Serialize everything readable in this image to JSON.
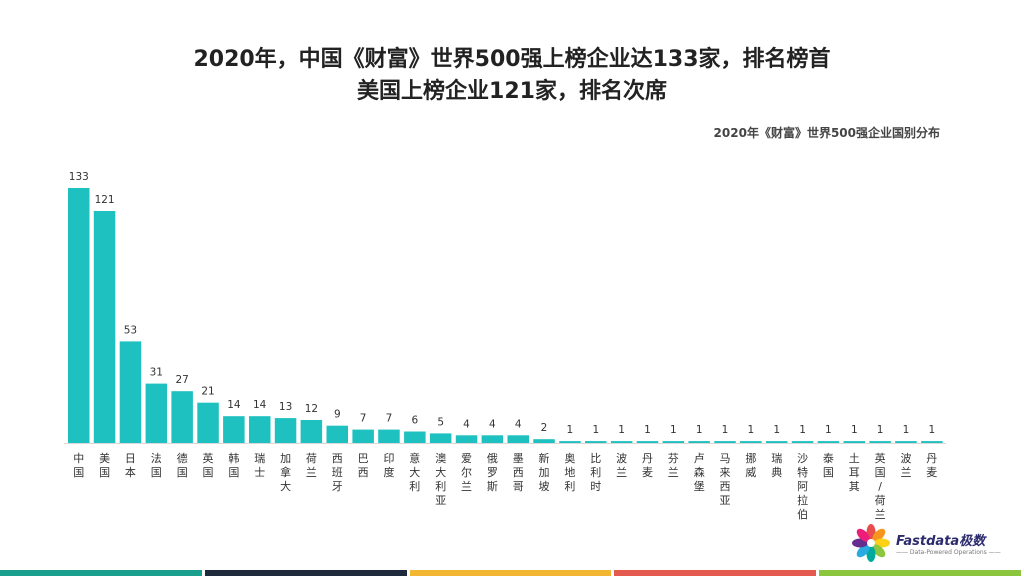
{
  "header": {
    "title_line1": "2020年，中国《财富》世界500强上榜企业达133家，排名榜首",
    "title_line2": "美国上榜企业121家，排名次席"
  },
  "chart_data": {
    "type": "bar",
    "subtitle": "2020年《财富》世界500强企业国别分布",
    "categories": [
      "中国",
      "美国",
      "日本",
      "法国",
      "德国",
      "英国",
      "韩国",
      "瑞士",
      "加拿大",
      "荷兰",
      "西班牙",
      "巴西",
      "印度",
      "意大利",
      "澳大利亚",
      "爱尔兰",
      "俄罗斯",
      "墨西哥",
      "新加坡",
      "奥地利",
      "比利时",
      "波兰",
      "丹麦",
      "芬兰",
      "卢森堡",
      "马来西亚",
      "挪威",
      "瑞典",
      "沙特阿拉伯",
      "泰国",
      "土耳其",
      "英国/荷兰",
      "波兰",
      "丹麦"
    ],
    "values": [
      133,
      121,
      53,
      31,
      27,
      21,
      14,
      14,
      13,
      12,
      9,
      7,
      7,
      6,
      5,
      4,
      4,
      4,
      2,
      1,
      1,
      1,
      1,
      1,
      1,
      1,
      1,
      1,
      1,
      1,
      1,
      1,
      1,
      1
    ],
    "bar_color": "#1fc0c0",
    "ylim": [
      0,
      133
    ],
    "grid": false,
    "legend": "none"
  },
  "logo": {
    "name": "Fastdata极数",
    "tagline": "—— Data-Powered Operations ——"
  },
  "footer_colors": [
    "#1a9f8e",
    "#1f2a3c",
    "#f2b632",
    "#e55a4f",
    "#8cc63f"
  ]
}
